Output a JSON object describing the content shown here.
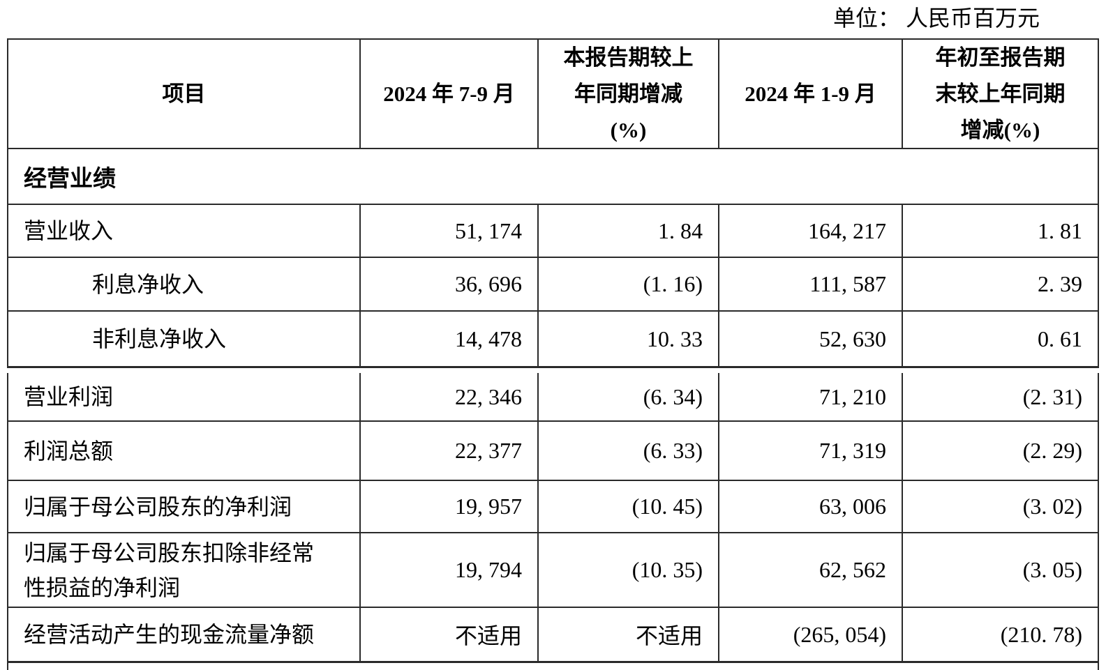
{
  "unit_note": "单位： 人民币百万元",
  "table": {
    "headers": [
      "项目",
      "2024 年 7-9 月",
      "本报告期较上\n年同期增减\n(%)",
      "2024 年 1-9 月",
      "年初至报告期\n末较上年同期\n增减(%)"
    ],
    "section_label": "经营业绩",
    "rows": [
      {
        "label": "营业收入",
        "values": [
          "51, 174",
          "1. 84",
          "164, 217",
          "1. 81"
        ]
      },
      {
        "label": "利息净收入",
        "values": [
          "36, 696",
          "(1. 16)",
          "111, 587",
          "2. 39"
        ]
      },
      {
        "label": "非利息净收入",
        "values": [
          "14, 478",
          "10. 33",
          "52, 630",
          "0. 61"
        ]
      },
      {
        "label": "营业利润",
        "values": [
          "22, 346",
          "(6. 34)",
          "71, 210",
          "(2. 31)"
        ]
      },
      {
        "label": "利润总额",
        "values": [
          "22, 377",
          "(6. 33)",
          "71, 319",
          "(2. 29)"
        ]
      },
      {
        "label": "归属于母公司股东的净利润",
        "values": [
          "19, 957",
          "(10. 45)",
          "63, 006",
          "(3. 02)"
        ]
      },
      {
        "label": "归属于母公司股东扣除非经常\n性损益的净利润",
        "values": [
          "19, 794",
          "(10. 35)",
          "62, 562",
          "(3. 05)"
        ]
      },
      {
        "label": "经营活动产生的现金流量净额",
        "values": [
          "不适用",
          "不适用",
          "(265, 054)",
          "(210. 78)"
        ]
      }
    ]
  }
}
